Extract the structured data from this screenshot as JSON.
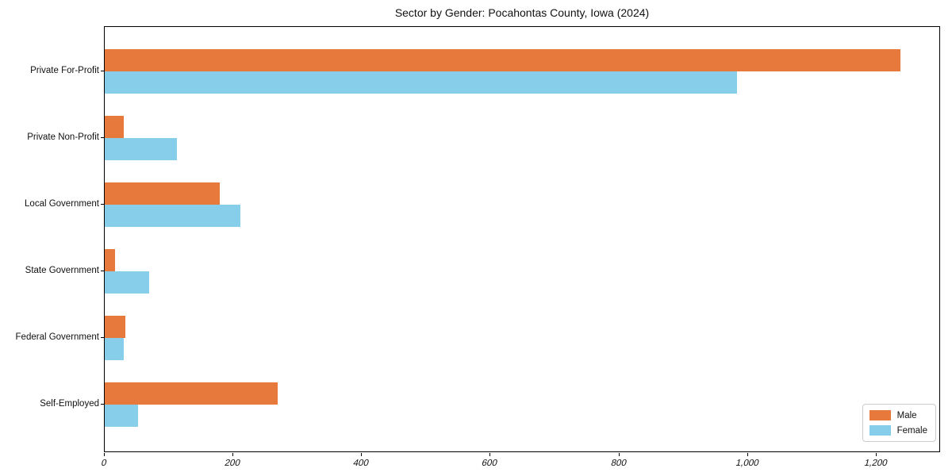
{
  "chart_data": {
    "type": "bar",
    "orientation": "horizontal",
    "title": "Sector by Gender: Pocahontas County, Iowa (2024)",
    "categories": [
      "Private For-Profit",
      "Private Non-Profit",
      "Local Government",
      "State Government",
      "Federal Government",
      "Self-Employed"
    ],
    "series": [
      {
        "name": "Male",
        "color": "#e8793d",
        "values": [
          1237,
          30,
          179,
          16,
          32,
          269
        ]
      },
      {
        "name": "Female",
        "color": "#87ceeb",
        "values": [
          983,
          112,
          211,
          69,
          30,
          52
        ]
      }
    ],
    "xlabel": "",
    "ylabel": "",
    "xlim": [
      0,
      1300
    ],
    "xticks": [
      0,
      200,
      400,
      600,
      800,
      1000,
      1200
    ],
    "xtick_labels": [
      "0",
      "200",
      "400",
      "600",
      "800",
      "1,000",
      "1,200"
    ],
    "grid": false,
    "legend_position": "lower right"
  }
}
